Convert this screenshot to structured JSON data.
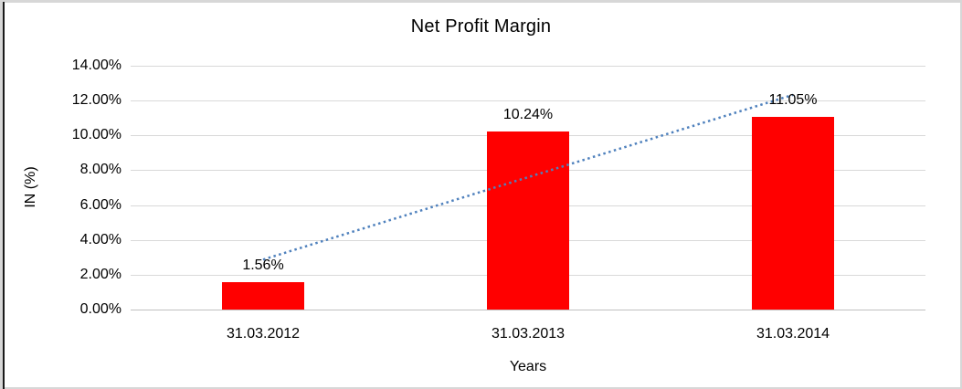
{
  "chart_data": {
    "type": "bar",
    "title": "Net Profit Margin",
    "categories": [
      "31.03.2012",
      "31.03.2013",
      "31.03.2014"
    ],
    "values": [
      1.56,
      10.24,
      11.05
    ],
    "data_labels": [
      "1.56%",
      "10.24%",
      "11.05%"
    ],
    "xlabel": "Years",
    "ylabel": "IN (%)",
    "ylim": [
      0,
      14
    ],
    "ytick_step": 2,
    "ytick_labels": [
      "0.00%",
      "2.00%",
      "4.00%",
      "6.00%",
      "8.00%",
      "10.00%",
      "12.00%",
      "14.00%"
    ],
    "grid": true,
    "legend": "none",
    "bar_color": "#FF0000",
    "gridline_color": "#d9d9d9",
    "trendline": {
      "type": "linear",
      "style": "dotted",
      "color": "#4F81BD",
      "start_value": 2.87,
      "end_value": 12.33
    }
  }
}
